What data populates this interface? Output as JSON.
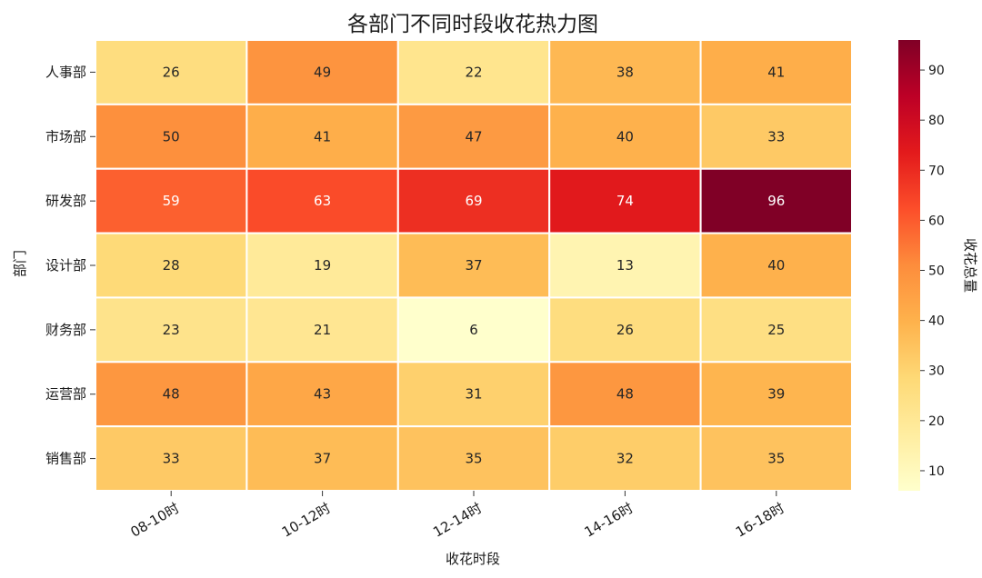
{
  "chart_data": {
    "type": "heatmap",
    "title": "各部门不同时段收花热力图",
    "xlabel": "收花时段",
    "ylabel": "部门",
    "x_categories": [
      "08-10时",
      "10-12时",
      "12-14时",
      "14-16时",
      "16-18时"
    ],
    "y_categories": [
      "人事部",
      "市场部",
      "研发部",
      "设计部",
      "财务部",
      "运营部",
      "销售部"
    ],
    "values": [
      [
        26,
        49,
        22,
        38,
        41
      ],
      [
        50,
        41,
        47,
        40,
        33
      ],
      [
        59,
        63,
        69,
        74,
        96
      ],
      [
        28,
        19,
        37,
        13,
        40
      ],
      [
        23,
        21,
        6,
        26,
        25
      ],
      [
        48,
        43,
        31,
        48,
        39
      ],
      [
        33,
        37,
        35,
        32,
        35
      ]
    ],
    "colorbar": {
      "label": "收花总量",
      "range": [
        6,
        96
      ],
      "ticks": [
        10,
        20,
        30,
        40,
        50,
        60,
        70,
        80,
        90
      ],
      "colormap": "YlOrRd"
    },
    "annotations": true,
    "grid": false
  }
}
